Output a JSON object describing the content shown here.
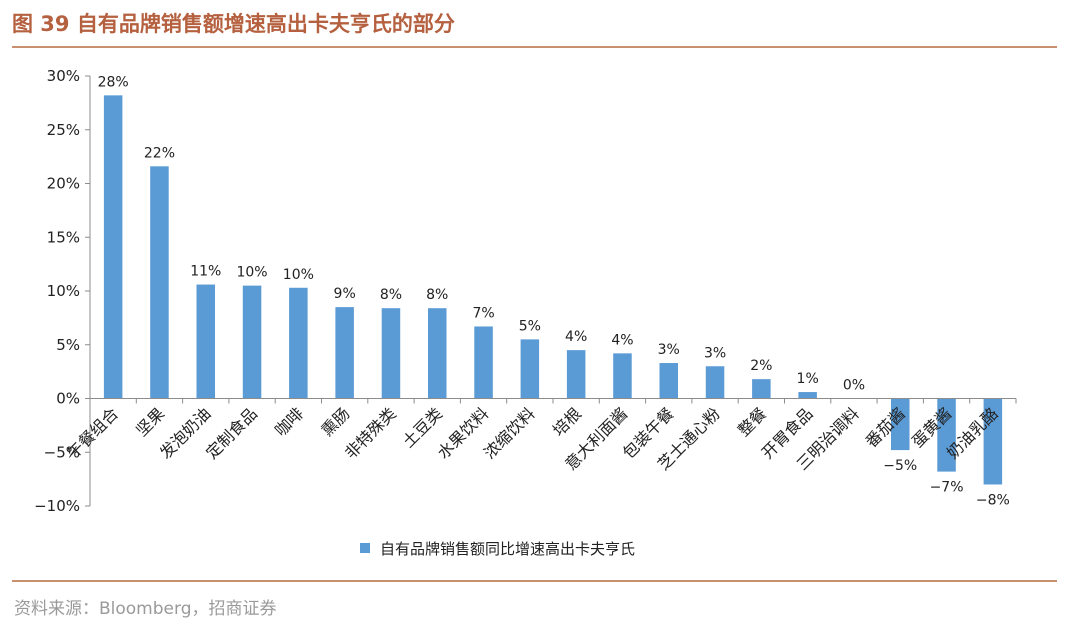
{
  "header": {
    "title": "图 39  自有品牌销售额增速高出卡夫亨氏的部分"
  },
  "footer": {
    "source": "资料来源：Bloomberg，招商证券"
  },
  "colors": {
    "bar": "#5b9bd5",
    "accent": "#b5603f",
    "rule": "#c9906f"
  },
  "chart_data": {
    "type": "bar",
    "title": "",
    "xlabel": "",
    "ylabel": "",
    "ylim": [
      -0.1,
      0.3
    ],
    "yticks": [
      -0.1,
      -0.05,
      0.0,
      0.05,
      0.1,
      0.15,
      0.2,
      0.25,
      0.3
    ],
    "ytick_labels": [
      "−10%",
      "−5%",
      "0%",
      "5%",
      "10%",
      "15%",
      "20%",
      "25%",
      "30%"
    ],
    "grid": false,
    "legend_position": "bottom",
    "categories": [
      "午餐组合",
      "坚果",
      "发泡奶油",
      "定制食品",
      "咖啡",
      "熏肠",
      "非特殊类",
      "土豆类",
      "水果饮料",
      "浓缩饮料",
      "培根",
      "意大利面酱",
      "包装午餐",
      "芝士通心粉",
      "整餐",
      "开胃食品",
      "三明治调料",
      "番茄酱",
      "蛋黄酱",
      "奶油乳酪"
    ],
    "series": [
      {
        "name": "自有品牌销售额同比增速高出卡夫亨氏",
        "values": [
          0.282,
          0.216,
          0.106,
          0.105,
          0.103,
          0.085,
          0.084,
          0.084,
          0.067,
          0.055,
          0.045,
          0.042,
          0.033,
          0.03,
          0.018,
          0.006,
          0.0,
          -0.048,
          -0.068,
          -0.08
        ],
        "labels": [
          "28%",
          "22%",
          "11%",
          "10%",
          "10%",
          "9%",
          "8%",
          "8%",
          "7%",
          "5%",
          "4%",
          "4%",
          "3%",
          "3%",
          "2%",
          "1%",
          "0%",
          "−5%",
          "−7%",
          "−8%"
        ]
      }
    ]
  }
}
